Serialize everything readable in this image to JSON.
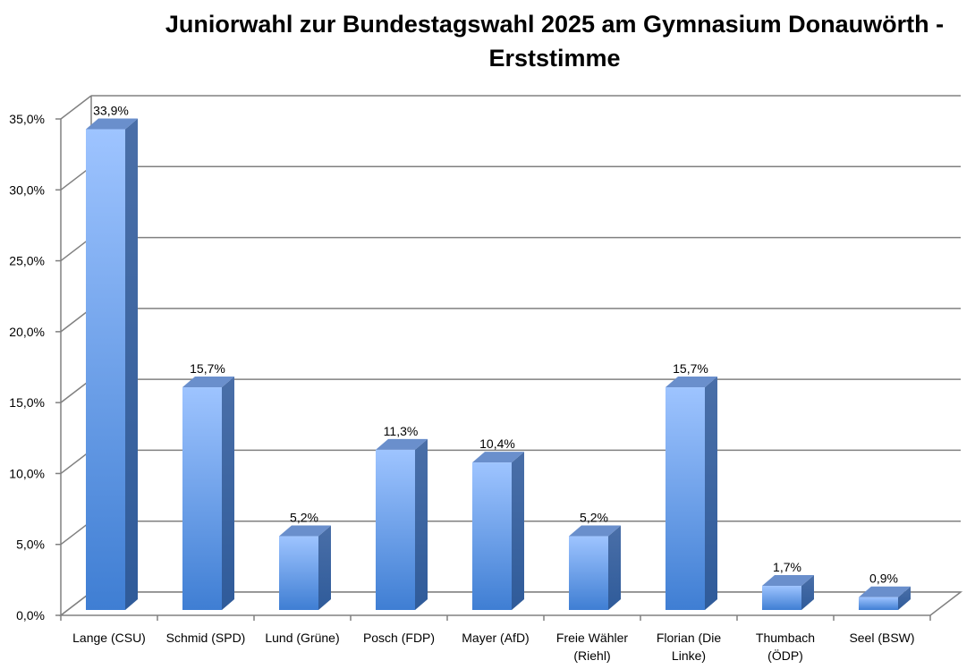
{
  "chart_data": {
    "type": "bar",
    "title_lines": [
      "Juniorwahl zur Bundestagswahl 2025 am Gymnasium Donauwörth -",
      "Erststimme"
    ],
    "categories": [
      [
        "Lange (CSU)"
      ],
      [
        "Schmid (SPD)"
      ],
      [
        "Lund (Grüne)"
      ],
      [
        "Posch (FDP)"
      ],
      [
        "Mayer (AfD)"
      ],
      [
        "Freie Wähler",
        "(Riehl)"
      ],
      [
        "Florian (Die",
        "Linke)"
      ],
      [
        "Thumbach",
        "(ÖDP)"
      ],
      [
        "Seel (BSW)"
      ]
    ],
    "values": [
      33.9,
      15.7,
      5.2,
      11.3,
      10.4,
      5.2,
      15.7,
      1.7,
      0.9
    ],
    "data_labels": [
      "33,9%",
      "15,7%",
      "5,2%",
      "11,3%",
      "10,4%",
      "5,2%",
      "15,7%",
      "1,7%",
      "0,9%"
    ],
    "y_ticks": [
      0,
      5,
      10,
      15,
      20,
      25,
      30,
      35
    ],
    "y_tick_labels": [
      "0,0%",
      "5,0%",
      "10,0%",
      "15,0%",
      "20,0%",
      "25,0%",
      "30,0%",
      "35,0%"
    ],
    "ylim": [
      0,
      35
    ],
    "grid": true,
    "legend": "none",
    "style": "3d-column",
    "colors": {
      "bar_light": "#9ec4ff",
      "bar_dark": "#3f7ed3",
      "bar_side": "#2f5b9a",
      "bar_top": "#6a8fcc",
      "grid": "#808080",
      "wall": "#ffffff"
    }
  }
}
